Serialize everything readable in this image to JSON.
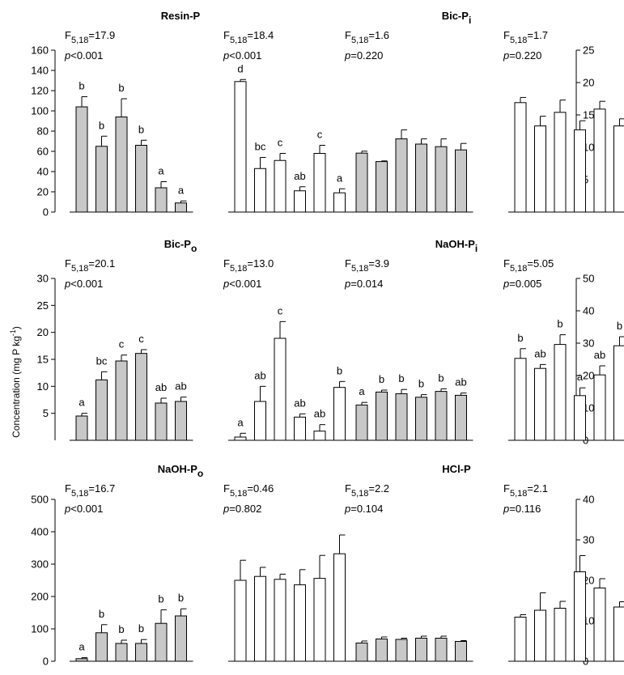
{
  "figure": {
    "ylabel": "Concentration (mg P kg",
    "ylabel_exp": "-1",
    "ylabel_close": ")"
  },
  "colors": {
    "gray": "#c8c8c8",
    "white": "#ffffff",
    "stroke": "#000000"
  },
  "chart_data": [
    {
      "type": "bar",
      "title": "Resin-P",
      "title_sub": "",
      "axis_side": "left",
      "ylim": [
        0,
        160
      ],
      "ticks": [
        0,
        20,
        40,
        60,
        80,
        100,
        120,
        140,
        160
      ],
      "groups": [
        {
          "fill": "gray",
          "stat_f": "5,18",
          "stat_f_val": "17.9",
          "stat_p_op": "<",
          "stat_p_val": "0.001",
          "values": [
            104,
            65,
            94,
            66,
            24,
            9
          ],
          "errors": [
            10,
            10,
            18,
            5,
            6,
            2
          ],
          "letters": [
            "b",
            "b",
            "b",
            "b",
            "a",
            "a"
          ]
        },
        {
          "fill": "white",
          "stat_f": "5,18",
          "stat_f_val": "18.4",
          "stat_p_op": "<",
          "stat_p_val": "0.001",
          "values": [
            129,
            43,
            51,
            21,
            58,
            19
          ],
          "errors": [
            2,
            11,
            7,
            4,
            8,
            4
          ],
          "letters": [
            "d",
            "bc",
            "c",
            "ab",
            "c",
            "a"
          ]
        }
      ]
    },
    {
      "type": "bar",
      "title": "Bic-P",
      "title_sub": "i",
      "axis_side": "right",
      "ylim": [
        0,
        25
      ],
      "ticks": [
        5,
        10,
        15,
        20,
        25
      ],
      "groups": [
        {
          "fill": "gray",
          "stat_f": "5,18",
          "stat_f_val": "1.6",
          "stat_p_op": "=",
          "stat_p_val": "0.220",
          "values": [
            9.1,
            7.8,
            11.3,
            10.5,
            10.1,
            9.6
          ],
          "errors": [
            0.3,
            0.1,
            1.4,
            0.8,
            1.2,
            1.0
          ],
          "letters": [
            "",
            "",
            "",
            "",
            "",
            ""
          ]
        },
        {
          "fill": "white",
          "stat_f": "5,18",
          "stat_f_val": "1.7",
          "stat_p_op": "=",
          "stat_p_val": "0.220",
          "values": [
            16.9,
            13.3,
            15.4,
            12.7,
            15.9,
            13.3
          ],
          "errors": [
            0.8,
            1.5,
            1.9,
            1.4,
            1.2,
            1.1
          ],
          "letters": [
            "",
            "",
            "",
            "",
            "",
            ""
          ]
        }
      ]
    },
    {
      "type": "bar",
      "title": "Bic-P",
      "title_sub": "o",
      "axis_side": "left",
      "ylim": [
        0,
        30
      ],
      "ticks": [
        5,
        10,
        15,
        20,
        25,
        30
      ],
      "groups": [
        {
          "fill": "gray",
          "stat_f": "5,18",
          "stat_f_val": "20.1",
          "stat_p_op": "<",
          "stat_p_val": "0.001",
          "values": [
            4.5,
            11.2,
            14.7,
            16.1,
            6.9,
            7.2
          ],
          "errors": [
            0.5,
            1.5,
            1.1,
            0.7,
            0.9,
            0.8
          ],
          "letters": [
            "a",
            "bc",
            "c",
            "c",
            "ab",
            "ab"
          ]
        },
        {
          "fill": "white",
          "stat_f": "5,18",
          "stat_f_val": "13.0",
          "stat_p_op": "<",
          "stat_p_val": "0.001",
          "values": [
            0.6,
            7.2,
            18.9,
            4.3,
            1.7,
            9.8
          ],
          "errors": [
            0.7,
            2.8,
            3.1,
            0.6,
            1.2,
            1.1
          ],
          "letters": [
            "a",
            "ab",
            "c",
            "ab",
            "ab",
            "b"
          ]
        }
      ]
    },
    {
      "type": "bar",
      "title": "NaOH-P",
      "title_sub": "i",
      "axis_side": "right",
      "ylim": [
        0,
        50
      ],
      "ticks": [
        0,
        10,
        20,
        30,
        40,
        50
      ],
      "groups": [
        {
          "fill": "gray",
          "stat_f": "5,18",
          "stat_f_val": "3.9",
          "stat_p_op": "=",
          "stat_p_val": "0.014",
          "values": [
            10.9,
            14.9,
            14.4,
            13.3,
            15.1,
            13.9
          ],
          "errors": [
            0.8,
            0.6,
            1.3,
            0.8,
            0.8,
            0.7
          ],
          "letters": [
            "a",
            "b",
            "b",
            "b",
            "b",
            "ab"
          ]
        },
        {
          "fill": "white",
          "stat_f": "5,18",
          "stat_f_val": "5.05",
          "stat_p_op": "=",
          "stat_p_val": "0.005",
          "values": [
            25.3,
            22.2,
            29.6,
            13.8,
            20.2,
            29.2
          ],
          "errors": [
            3.0,
            1.2,
            3.0,
            2.4,
            2.8,
            2.8
          ],
          "letters": [
            "b",
            "ab",
            "b",
            "a",
            "ab",
            "b"
          ]
        }
      ]
    },
    {
      "type": "bar",
      "title": "NaOH-P",
      "title_sub": "o",
      "axis_side": "left",
      "ylim": [
        0,
        500
      ],
      "ticks": [
        0,
        100,
        200,
        300,
        400,
        500
      ],
      "groups": [
        {
          "fill": "gray",
          "stat_f": "5,18",
          "stat_f_val": "16.7",
          "stat_p_op": "<",
          "stat_p_val": "0.001",
          "values": [
            8,
            88,
            55,
            55,
            117,
            140
          ],
          "errors": [
            3,
            25,
            10,
            12,
            42,
            22
          ],
          "letters": [
            "a",
            "b",
            "b",
            "b",
            "b",
            "b"
          ]
        },
        {
          "fill": "white",
          "stat_f": "5,18",
          "stat_f_val": "0.46",
          "stat_p_op": "=",
          "stat_p_val": "0.802",
          "values": [
            250,
            262,
            253,
            236,
            256,
            332
          ],
          "errors": [
            62,
            28,
            16,
            47,
            71,
            58
          ],
          "letters": [
            "",
            "",
            "",
            "",
            "",
            ""
          ]
        }
      ]
    },
    {
      "type": "bar",
      "title": "HCl-P",
      "title_sub": "",
      "axis_side": "right",
      "ylim": [
        0,
        40
      ],
      "ticks": [
        0,
        10,
        20,
        30,
        40
      ],
      "groups": [
        {
          "fill": "gray",
          "stat_f": "5,18",
          "stat_f_val": "2.2",
          "stat_p_op": "=",
          "stat_p_val": "0.104",
          "values": [
            4.5,
            5.5,
            5.4,
            5.7,
            5.7,
            4.9
          ],
          "errors": [
            0.5,
            0.5,
            0.3,
            0.5,
            0.5,
            0.2
          ],
          "letters": [
            "",
            "",
            "",
            "",
            "",
            ""
          ]
        },
        {
          "fill": "white",
          "stat_f": "5,18",
          "stat_f_val": "2.1",
          "stat_p_op": "=",
          "stat_p_val": "0.116",
          "values": [
            10.9,
            12.6,
            13.1,
            22.1,
            18.1,
            13.4
          ],
          "errors": [
            0.6,
            4.3,
            1.7,
            4.0,
            2.3,
            1.3
          ],
          "letters": [
            "",
            "",
            "",
            "",
            "",
            ""
          ]
        }
      ]
    }
  ]
}
